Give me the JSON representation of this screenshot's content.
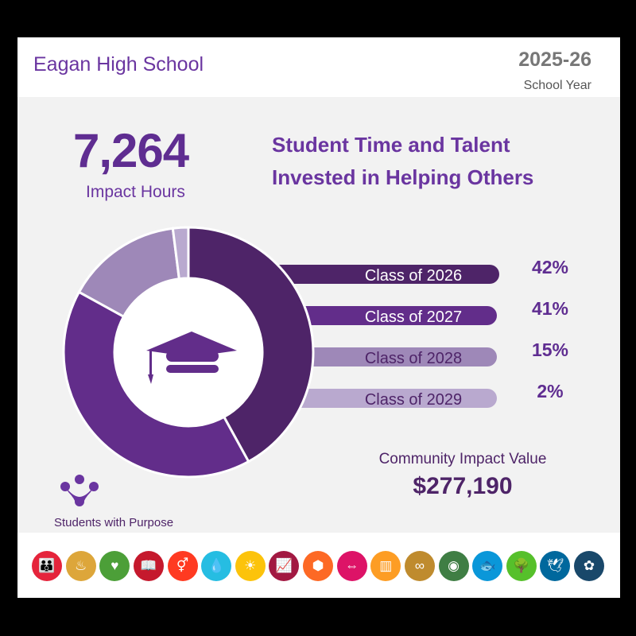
{
  "header": {
    "school": "Eagan High School",
    "year": "2025-26",
    "year_label": "School Year"
  },
  "summary": {
    "hours": "7,264",
    "hours_label": "Impact Hours",
    "title_line1": "Student Time and Talent",
    "title_line2": "Invested in Helping Others"
  },
  "chart_data": {
    "type": "pie",
    "variant": "donut",
    "categories": [
      "Class of 2026",
      "Class of 2027",
      "Class of 2028",
      "Class of 2029"
    ],
    "values": [
      42,
      41,
      15,
      2
    ],
    "labels": [
      "42%",
      "41%",
      "15%",
      "2%"
    ],
    "colors": [
      "#4e2468",
      "#622d8a",
      "#9e88b8",
      "#b9a9cf"
    ],
    "label_colors": [
      "#ffffff",
      "#ffffff",
      "#4e2468",
      "#4e2468"
    ],
    "center_icon": "graduation-cap-icon"
  },
  "impact": {
    "label": "Community Impact Value",
    "value": "$277,190"
  },
  "brand": {
    "name": "Students with Purpose",
    "logo_icon": "students-with-purpose-logo"
  },
  "sdg_icons": [
    {
      "name": "no-poverty-icon",
      "color": "#E5243B",
      "glyph": "👪"
    },
    {
      "name": "zero-hunger-icon",
      "color": "#DDA63A",
      "glyph": "♨"
    },
    {
      "name": "good-health-icon",
      "color": "#4C9F38",
      "glyph": "♥"
    },
    {
      "name": "quality-education-icon",
      "color": "#C5192D",
      "glyph": "📖"
    },
    {
      "name": "gender-equality-icon",
      "color": "#FF3A21",
      "glyph": "⚥"
    },
    {
      "name": "clean-water-icon",
      "color": "#26BDE2",
      "glyph": "💧"
    },
    {
      "name": "clean-energy-icon",
      "color": "#FCC30B",
      "glyph": "☀"
    },
    {
      "name": "decent-work-icon",
      "color": "#A21942",
      "glyph": "📈"
    },
    {
      "name": "industry-innovation-icon",
      "color": "#FD6925",
      "glyph": "⬢"
    },
    {
      "name": "reduced-inequalities-icon",
      "color": "#DD1367",
      "glyph": "⇔"
    },
    {
      "name": "sustainable-cities-icon",
      "color": "#FD9D24",
      "glyph": "▥"
    },
    {
      "name": "responsible-consumption-icon",
      "color": "#BF8B2E",
      "glyph": "∞"
    },
    {
      "name": "climate-action-icon",
      "color": "#3F7E44",
      "glyph": "◉"
    },
    {
      "name": "life-below-water-icon",
      "color": "#0A97D9",
      "glyph": "🐟"
    },
    {
      "name": "life-on-land-icon",
      "color": "#56C02B",
      "glyph": "🌳"
    },
    {
      "name": "peace-justice-icon",
      "color": "#00689D",
      "glyph": "🕊"
    },
    {
      "name": "partnerships-icon",
      "color": "#19486A",
      "glyph": "✿"
    }
  ]
}
